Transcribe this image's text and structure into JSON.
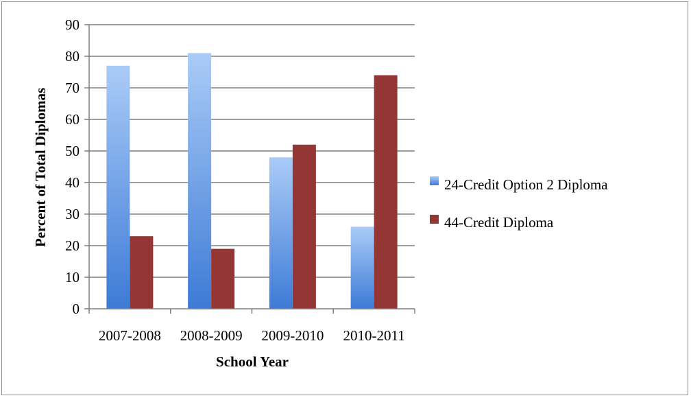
{
  "chart_data": {
    "type": "bar",
    "title": "",
    "xlabel": "School Year",
    "ylabel": "Percent of Total Diplomas",
    "categories": [
      "2007-2008",
      "2008-2009",
      "2009-2010",
      "2010-2011"
    ],
    "series": [
      {
        "name": "24-Credit Option 2 Diploma",
        "values": [
          77,
          81,
          48,
          26
        ],
        "color": "#5b8fd8"
      },
      {
        "name": "44-Credit Diploma",
        "values": [
          23,
          19,
          52,
          74
        ],
        "color": "#943634"
      }
    ],
    "ylim": [
      0,
      90
    ],
    "yticks": [
      "0",
      "10",
      "20",
      "30",
      "40",
      "50",
      "60",
      "70",
      "80",
      "90"
    ],
    "grid": true,
    "legend_position": "right"
  }
}
